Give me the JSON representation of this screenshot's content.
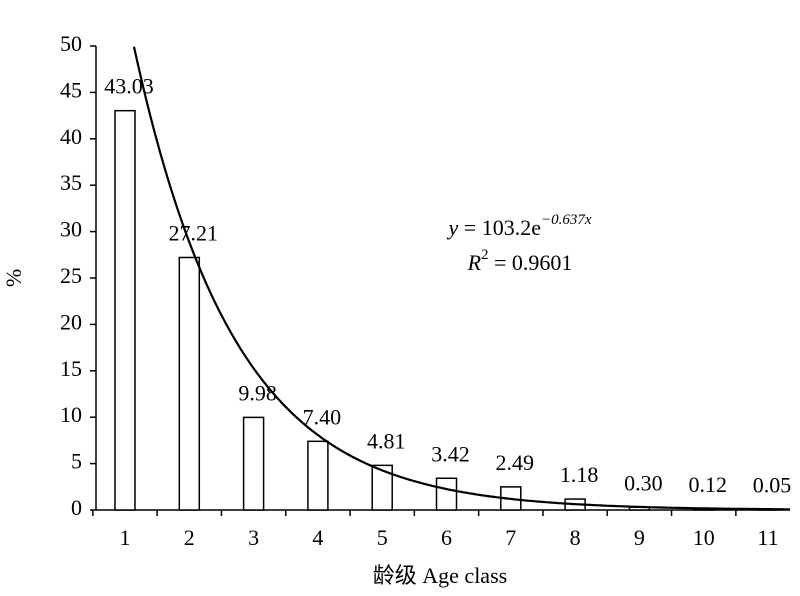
{
  "chart_data": {
    "type": "bar",
    "categories": [
      "1",
      "2",
      "3",
      "4",
      "5",
      "6",
      "7",
      "8",
      "9",
      "10",
      "11"
    ],
    "values": [
      43.03,
      27.21,
      9.98,
      7.4,
      4.81,
      3.42,
      2.49,
      1.18,
      0.3,
      0.12,
      0.05
    ],
    "value_labels": [
      "43.03",
      "27.21",
      "9.98",
      "7.40",
      "4.81",
      "3.42",
      "2.49",
      "1.18",
      "0.30",
      "0.12",
      "0.05"
    ],
    "color": "#ffffff",
    "ylim": [
      0,
      50
    ],
    "yticks": [
      0,
      5,
      10,
      15,
      20,
      25,
      30,
      35,
      40,
      45,
      50
    ],
    "y_label": "%",
    "x_label": "龄级 Age class",
    "trendline": {
      "a": 103.2,
      "b": -0.637,
      "equation": {
        "lhs": "y",
        "rhs": " = 103.2e",
        "exponent": "−0.637x"
      },
      "r_squared": {
        "symbol": "R",
        "sup": "2",
        "rhs": " = 0.9601"
      }
    }
  }
}
